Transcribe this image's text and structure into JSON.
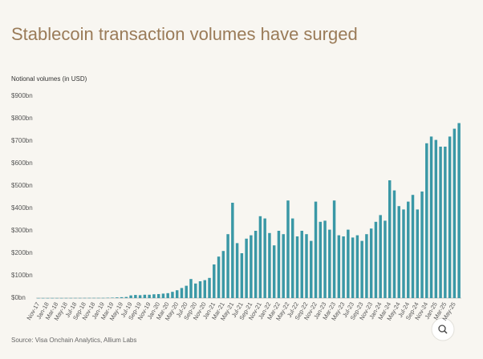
{
  "chart_data": {
    "type": "bar",
    "title": "Stablecoin transaction volumes have surged",
    "y_axis_label": "Notional volumes (in USD)",
    "source": "Source: Visa Onchain Analytics, Allium Labs",
    "color": "#3a98a6",
    "categories": [
      "Nov-17",
      null,
      "Jan-18",
      null,
      "Mar-18",
      null,
      "May-18",
      null,
      "Jul-18",
      null,
      "Sep-18",
      null,
      "Nov-18",
      null,
      "Jan-19",
      null,
      "Mar-19",
      null,
      "May-19",
      null,
      "Jul-19",
      null,
      "Sep-19",
      null,
      "Nov-19",
      null,
      "Jan-20",
      null,
      "Mar-20",
      null,
      "May-20",
      null,
      "Jul-20",
      null,
      "Sep-20",
      null,
      "Nov-20",
      null,
      "Jan-21",
      null,
      "Mar-21",
      null,
      "May-21",
      null,
      "Jul-21",
      null,
      "Sep-21",
      null,
      "Nov-21",
      null,
      "Jan-22",
      null,
      "Mar-22",
      null,
      "May-22",
      null,
      "Jul-22",
      null,
      "Sep-22",
      null,
      "Nov-22",
      null,
      "Jan-23",
      null,
      "Mar-23",
      null,
      "May-23",
      null,
      "Jul-23",
      null,
      "Sep-23",
      null,
      "Nov-23",
      null,
      "Jan-24",
      null,
      "Mar-24",
      null,
      "May-24",
      null,
      "Jul-24",
      null,
      "Sep-24",
      null,
      "Nov-24",
      null,
      "Jan-25",
      null,
      "Mar-25",
      null,
      "May-25",
      null
    ],
    "values": [
      0.5,
      0.5,
      0.5,
      0.6,
      0.6,
      0.6,
      0.7,
      0.7,
      0.8,
      0.8,
      0.9,
      1,
      1,
      1,
      1,
      1.5,
      2,
      3,
      4,
      5,
      12,
      14,
      13,
      15,
      15,
      17,
      18,
      20,
      22,
      28,
      35,
      45,
      55,
      85,
      65,
      75,
      80,
      90,
      150,
      185,
      210,
      285,
      425,
      245,
      200,
      265,
      280,
      300,
      365,
      355,
      290,
      235,
      300,
      285,
      435,
      355,
      275,
      300,
      285,
      255,
      430,
      340,
      345,
      305,
      435,
      280,
      275,
      305,
      270,
      280,
      255,
      285,
      310,
      340,
      370,
      345,
      525,
      480,
      410,
      395,
      430,
      460,
      395,
      475,
      690,
      720,
      705,
      675,
      675,
      720,
      755,
      780
    ],
    "ylim": [
      0,
      900
    ],
    "yticks": [
      {
        "value": 0,
        "label": "$0bn"
      },
      {
        "value": 100,
        "label": "$100bn"
      },
      {
        "value": 200,
        "label": "$200bn"
      },
      {
        "value": 300,
        "label": "$300bn"
      },
      {
        "value": 400,
        "label": "$400bn"
      },
      {
        "value": 500,
        "label": "$500bn"
      },
      {
        "value": 600,
        "label": "$600bn"
      },
      {
        "value": 700,
        "label": "$700bn"
      },
      {
        "value": 800,
        "label": "$800bn"
      },
      {
        "value": 900,
        "label": "$900bn"
      }
    ],
    "grid": false
  }
}
